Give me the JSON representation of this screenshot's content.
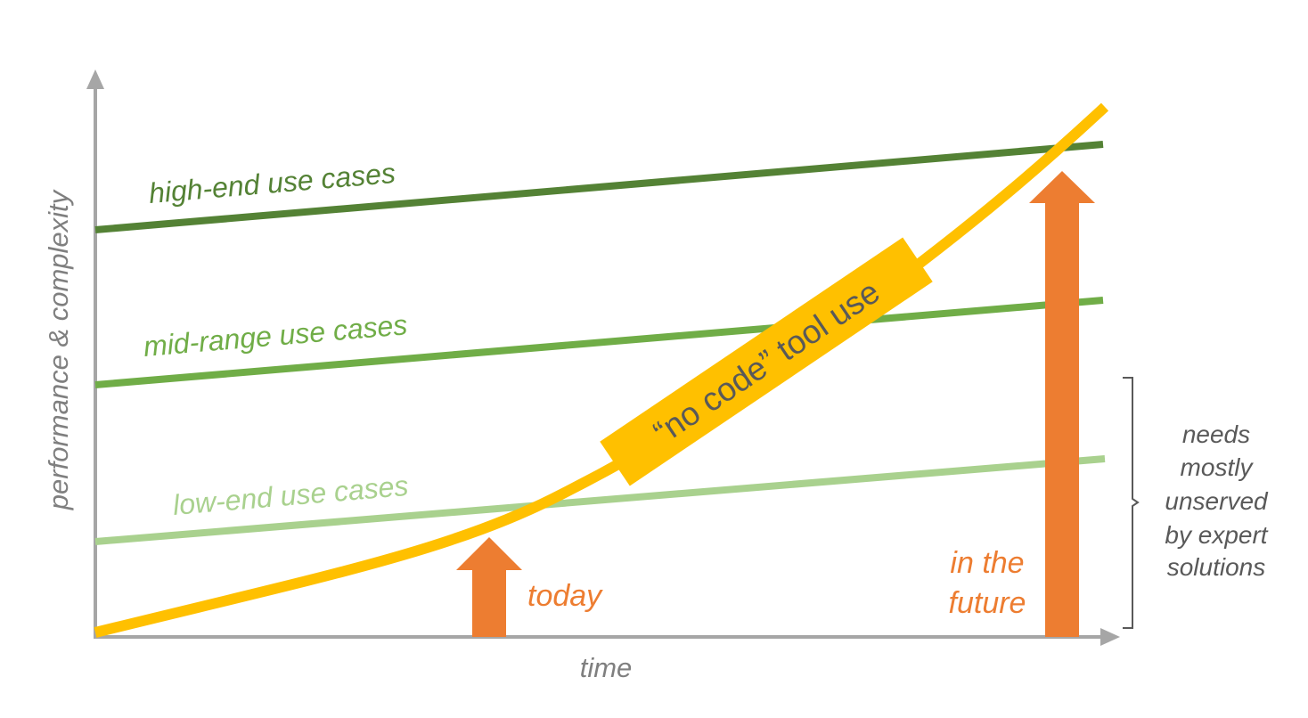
{
  "axes": {
    "y_label": "performance & complexity",
    "x_label": "time",
    "color": "#a6a6a6",
    "label_color": "#7f7f7f"
  },
  "lines": [
    {
      "label": "high-end use cases",
      "color": "#548235"
    },
    {
      "label": "mid-range use cases",
      "color": "#70ad47"
    },
    {
      "label": "low-end use cases",
      "color": "#a9d18e"
    }
  ],
  "curve": {
    "label": "“no code” tool use",
    "color": "#ffc000",
    "text_color": "#595959"
  },
  "markers": {
    "color": "#ed7d31",
    "today": "today",
    "future_line1": "in the",
    "future_line2": "future"
  },
  "bracket_note": {
    "lines": [
      "needs",
      "mostly",
      "unserved",
      "by expert",
      "solutions"
    ],
    "color": "#595959"
  }
}
